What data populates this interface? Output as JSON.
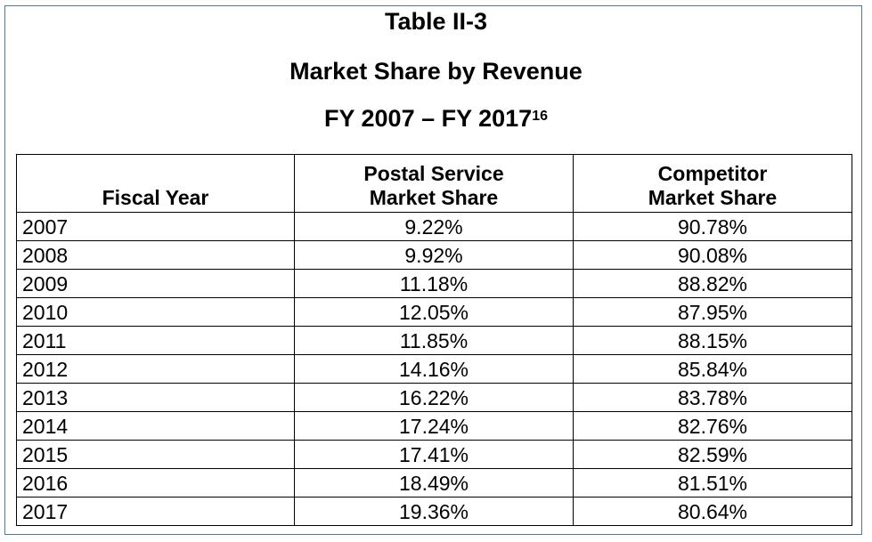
{
  "title": {
    "line1": "Table II-3",
    "line2": "Market Share by Revenue",
    "line3": "FY 2007 – FY 2017",
    "footnote": "16"
  },
  "table": {
    "headers": {
      "col1": "Fiscal Year",
      "col2_line1": "Postal Service",
      "col2_line2": "Market Share",
      "col3_line1": "Competitor",
      "col3_line2": "Market Share"
    },
    "rows": [
      {
        "year": "2007",
        "postal": "9.22%",
        "competitor": "90.78%"
      },
      {
        "year": "2008",
        "postal": "9.92%",
        "competitor": "90.08%"
      },
      {
        "year": "2009",
        "postal": "11.18%",
        "competitor": "88.82%"
      },
      {
        "year": "2010",
        "postal": "12.05%",
        "competitor": "87.95%"
      },
      {
        "year": "2011",
        "postal": "11.85%",
        "competitor": "88.15%"
      },
      {
        "year": "2012",
        "postal": "14.16%",
        "competitor": "85.84%"
      },
      {
        "year": "2013",
        "postal": "16.22%",
        "competitor": "83.78%"
      },
      {
        "year": "2014",
        "postal": "17.24%",
        "competitor": "82.76%"
      },
      {
        "year": "2015",
        "postal": "17.41%",
        "competitor": "82.59%"
      },
      {
        "year": "2016",
        "postal": "18.49%",
        "competitor": "81.51%"
      },
      {
        "year": "2017",
        "postal": "19.36%",
        "competitor": "80.64%"
      }
    ]
  }
}
